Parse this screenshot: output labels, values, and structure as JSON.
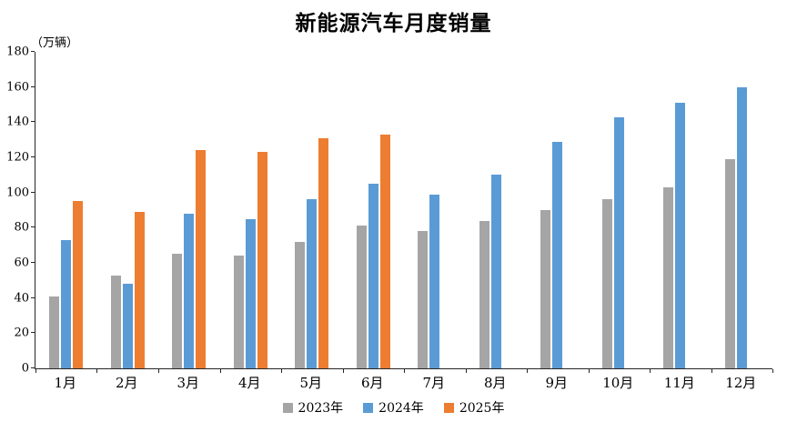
{
  "chart_data": {
    "type": "bar",
    "title": "新能源汽车月度销量",
    "unit_label": "（万辆）",
    "categories": [
      "1月",
      "2月",
      "3月",
      "4月",
      "5月",
      "6月",
      "7月",
      "8月",
      "9月",
      "10月",
      "11月",
      "12月"
    ],
    "series": [
      {
        "key": "2023",
        "name": "2023年",
        "color": "#A5A5A5",
        "values": [
          41,
          53,
          65,
          64,
          72,
          81,
          78,
          84,
          90,
          96,
          103,
          119
        ]
      },
      {
        "key": "2024",
        "name": "2024年",
        "color": "#5B9BD5",
        "values": [
          73,
          48,
          88,
          85,
          96,
          105,
          99,
          110,
          129,
          143,
          151,
          160
        ]
      },
      {
        "key": "2025",
        "name": "2025年",
        "color": "#ED7D31",
        "values": [
          95,
          89,
          124,
          123,
          131,
          133,
          null,
          null,
          null,
          null,
          null,
          null
        ]
      }
    ],
    "ylim": [
      0,
      180
    ],
    "ytick_step": 20,
    "xlabel": "",
    "ylabel": "（万辆）",
    "grid": false,
    "legend_position": "bottom"
  }
}
